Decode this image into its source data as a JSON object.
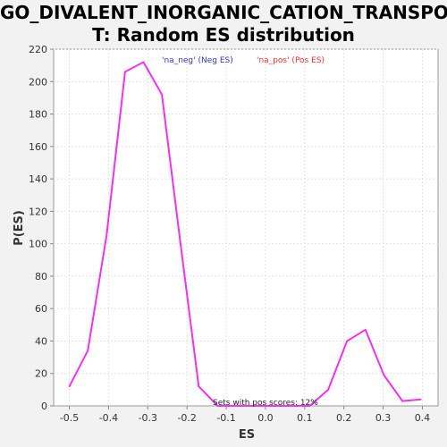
{
  "chart_data": {
    "type": "line",
    "title_line1": "GO_DIVALENT_INORGANIC_CATION_TRANSPOR",
    "title_line2": "T: Random ES distribution",
    "xlabel": "ES",
    "ylabel": "P(ES)",
    "xlim": [
      -0.54,
      0.44
    ],
    "ylim": [
      0,
      220
    ],
    "xticks": [
      "-0.5",
      "-0.4",
      "-0.3",
      "-0.2",
      "-0.1",
      "0.0",
      "0.1",
      "0.2",
      "0.3",
      "0.4"
    ],
    "xtick_values": [
      -0.5,
      -0.4,
      -0.3,
      -0.2,
      -0.1,
      0.0,
      0.1,
      0.2,
      0.3,
      0.4
    ],
    "yticks": [
      "0",
      "20",
      "40",
      "60",
      "80",
      "100",
      "120",
      "140",
      "160",
      "180",
      "200",
      "220"
    ],
    "ytick_values": [
      0,
      20,
      40,
      60,
      80,
      100,
      120,
      140,
      160,
      180,
      200,
      220
    ],
    "grid": true,
    "legend": [
      {
        "label": "'na_neg' (Neg ES)",
        "color": "#3333cc"
      },
      {
        "label": "'na_pos' (Pos ES)",
        "color": "#e83030"
      }
    ],
    "series": [
      {
        "color": "#ee33ee",
        "x": [
          -0.5,
          -0.453,
          -0.405,
          -0.358,
          -0.311,
          -0.264,
          -0.217,
          -0.17,
          -0.122,
          -0.075,
          -0.028,
          0.019,
          0.066,
          0.113,
          0.16,
          0.208,
          0.255,
          0.302,
          0.349,
          0.396
        ],
        "y": [
          12,
          34,
          105,
          206,
          212,
          192,
          101,
          12,
          0,
          0,
          0,
          0,
          0,
          0,
          10,
          40,
          47,
          19,
          3,
          4
        ]
      }
    ],
    "annotation": "Sets with pos scores: 12%"
  }
}
